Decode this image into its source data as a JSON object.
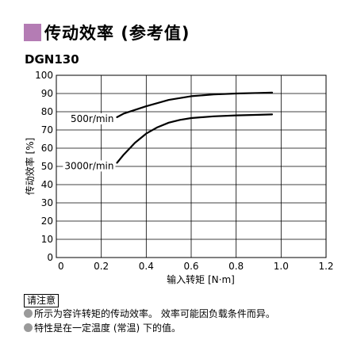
{
  "header": {
    "title": "传动效率 (参考值)",
    "model": "DGN130",
    "accent_color": "#b47cb4"
  },
  "chart_data": {
    "type": "line",
    "xlabel": "输入转矩 [N·m]",
    "ylabel": "传动效率 [%]",
    "xlim": [
      0,
      1.2
    ],
    "ylim": [
      0,
      100
    ],
    "x_ticks": [
      "0",
      "0.2",
      "0.4",
      "0.6",
      "0.8",
      "1.0",
      "1.2"
    ],
    "y_ticks": [
      "0",
      "10",
      "20",
      "30",
      "40",
      "50",
      "60",
      "70",
      "80",
      "90",
      "100"
    ],
    "grid": true,
    "line_color": "#000000",
    "series": [
      {
        "name": "500r/min",
        "x": [
          0.27,
          0.3,
          0.4,
          0.5,
          0.6,
          0.7,
          0.8,
          0.9,
          0.96
        ],
        "y": [
          77,
          79,
          83,
          86.5,
          88.5,
          89.5,
          90,
          90.3,
          90.5
        ]
      },
      {
        "name": "3000r/min",
        "x": [
          0.27,
          0.3,
          0.35,
          0.4,
          0.45,
          0.5,
          0.55,
          0.6,
          0.7,
          0.8,
          0.9,
          0.96
        ],
        "y": [
          52,
          56.5,
          63,
          68,
          71.5,
          74,
          75.5,
          76.5,
          77.5,
          78,
          78.3,
          78.5
        ]
      }
    ]
  },
  "notice": {
    "label": "请注意",
    "bullet_color": "#9a9a9a",
    "items": [
      "所示为容许转矩的传动效率。 效率可能因负载条件而异。",
      "特性是在一定温度 (常温) 下的值。"
    ]
  }
}
